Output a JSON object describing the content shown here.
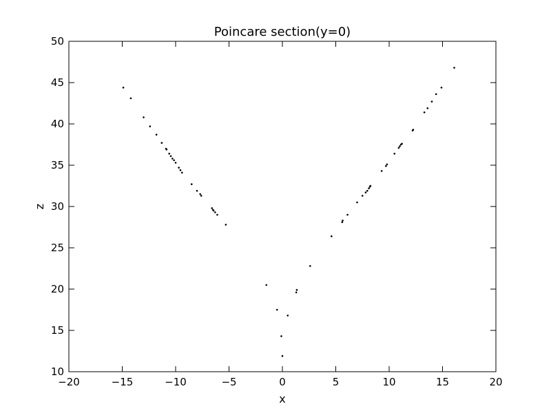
{
  "chart_data": {
    "type": "scatter",
    "title": "Poincare section(y=0)",
    "xlabel": "x",
    "ylabel": "z",
    "xlim": [
      -20,
      20
    ],
    "ylim": [
      10,
      50
    ],
    "xticks": [
      -20,
      -15,
      -10,
      -5,
      0,
      5,
      10,
      15,
      20
    ],
    "yticks": [
      10,
      15,
      20,
      25,
      30,
      35,
      40,
      45,
      50
    ],
    "grid": false,
    "marker_color": "#000000",
    "series": [
      {
        "points": [
          [
            -14.9,
            44.4
          ],
          [
            -14.2,
            43.1
          ],
          [
            -13.0,
            40.8
          ],
          [
            -12.4,
            39.7
          ],
          [
            -11.8,
            38.7
          ],
          [
            -11.3,
            37.7
          ],
          [
            -10.9,
            37.0
          ],
          [
            -10.85,
            36.9
          ],
          [
            -10.6,
            36.4
          ],
          [
            -10.45,
            36.1
          ],
          [
            -10.3,
            35.8
          ],
          [
            -10.15,
            35.6
          ],
          [
            -10.0,
            35.3
          ],
          [
            -9.7,
            34.7
          ],
          [
            -9.55,
            34.4
          ],
          [
            -9.4,
            34.1
          ],
          [
            -8.5,
            32.7
          ],
          [
            -8.0,
            31.9
          ],
          [
            -7.7,
            31.5
          ],
          [
            -7.6,
            31.3
          ],
          [
            -6.6,
            29.8
          ],
          [
            -6.5,
            29.6
          ],
          [
            -6.45,
            29.5
          ],
          [
            -6.3,
            29.3
          ],
          [
            -6.1,
            29.0
          ],
          [
            -5.3,
            27.8
          ],
          [
            -1.5,
            20.5
          ],
          [
            -0.5,
            17.5
          ],
          [
            -0.1,
            14.3
          ],
          [
            0.0,
            11.9
          ],
          [
            0.5,
            16.8
          ],
          [
            1.3,
            19.6
          ],
          [
            1.35,
            19.9
          ],
          [
            2.6,
            22.8
          ],
          [
            4.6,
            26.4
          ],
          [
            5.6,
            28.1
          ],
          [
            5.65,
            28.3
          ],
          [
            6.1,
            29.0
          ],
          [
            7.0,
            30.5
          ],
          [
            7.5,
            31.3
          ],
          [
            7.8,
            31.7
          ],
          [
            7.95,
            31.9
          ],
          [
            8.1,
            32.2
          ],
          [
            8.2,
            32.4
          ],
          [
            8.25,
            32.5
          ],
          [
            9.3,
            34.3
          ],
          [
            9.7,
            34.9
          ],
          [
            9.8,
            35.1
          ],
          [
            10.5,
            36.4
          ],
          [
            10.9,
            37.1
          ],
          [
            11.0,
            37.3
          ],
          [
            11.1,
            37.5
          ],
          [
            11.2,
            37.6
          ],
          [
            12.2,
            39.2
          ],
          [
            12.25,
            39.3
          ],
          [
            13.3,
            41.4
          ],
          [
            13.6,
            41.9
          ],
          [
            14.0,
            42.7
          ],
          [
            14.4,
            43.6
          ],
          [
            14.9,
            44.4
          ],
          [
            16.1,
            46.8
          ]
        ]
      }
    ]
  }
}
